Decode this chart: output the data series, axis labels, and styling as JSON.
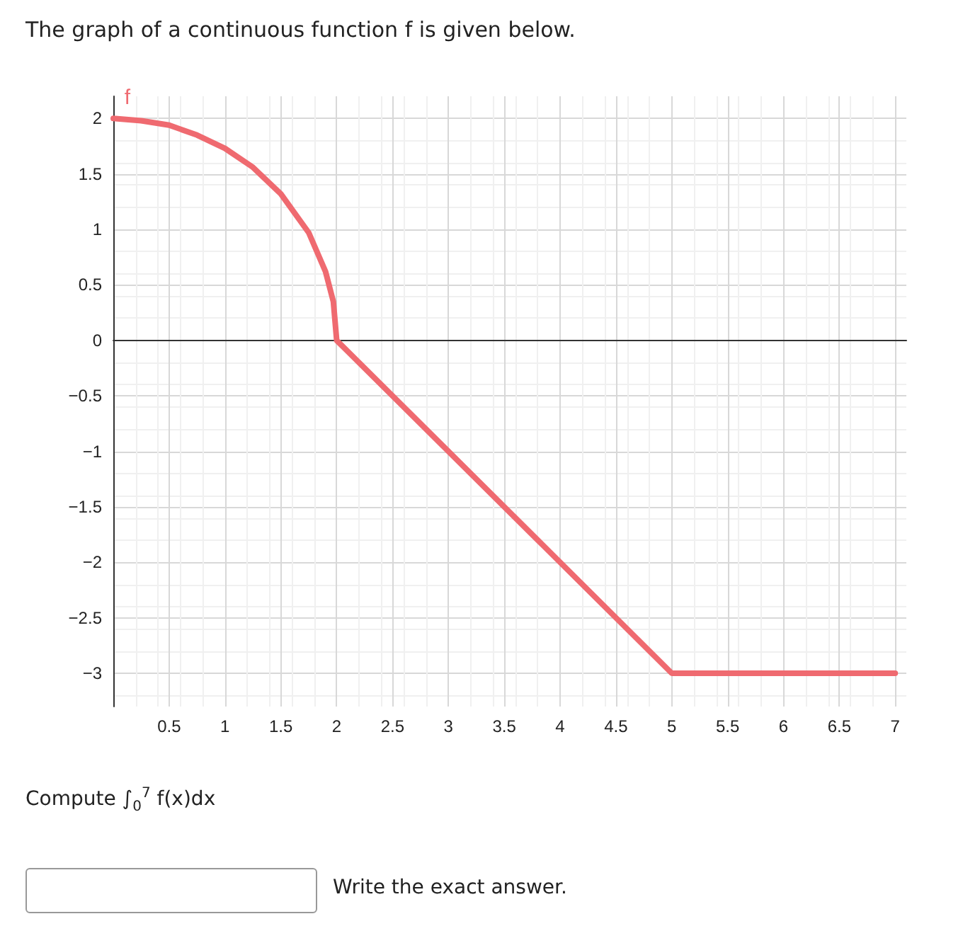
{
  "chart_data": {
    "type": "line",
    "title": "The graph of a continuous function f is given below.",
    "annotations": [
      "Compute ∫$_{0}$$^{7}$ f(x)dx",
      "Write the exact answer."
    ],
    "series": [
      {
        "name": "f",
        "color": "#ef6a70",
        "x": [
          0,
          0.25,
          0.5,
          0.75,
          1,
          1.25,
          1.5,
          1.75,
          1.9,
          1.97,
          2,
          5,
          7
        ],
        "values": [
          2,
          1.98,
          1.94,
          1.85,
          1.73,
          1.56,
          1.32,
          0.97,
          0.62,
          0.35,
          0,
          -3,
          -3
        ]
      }
    ],
    "xlim": [
      0,
      7.1
    ],
    "xticks": [
      0.5,
      1,
      1.5,
      2,
      2.5,
      3,
      3.5,
      4,
      4.5,
      5,
      5.5,
      6,
      6.5,
      7
    ],
    "ylim": [
      -3.3,
      2.2
    ],
    "yticks": [
      -3,
      -2.5,
      -2,
      -1.5,
      -1,
      -0.5,
      0,
      0.5,
      1,
      1.5,
      2
    ],
    "grid": true,
    "legend": false,
    "marker": "none",
    "line_style": "solid"
  }
}
